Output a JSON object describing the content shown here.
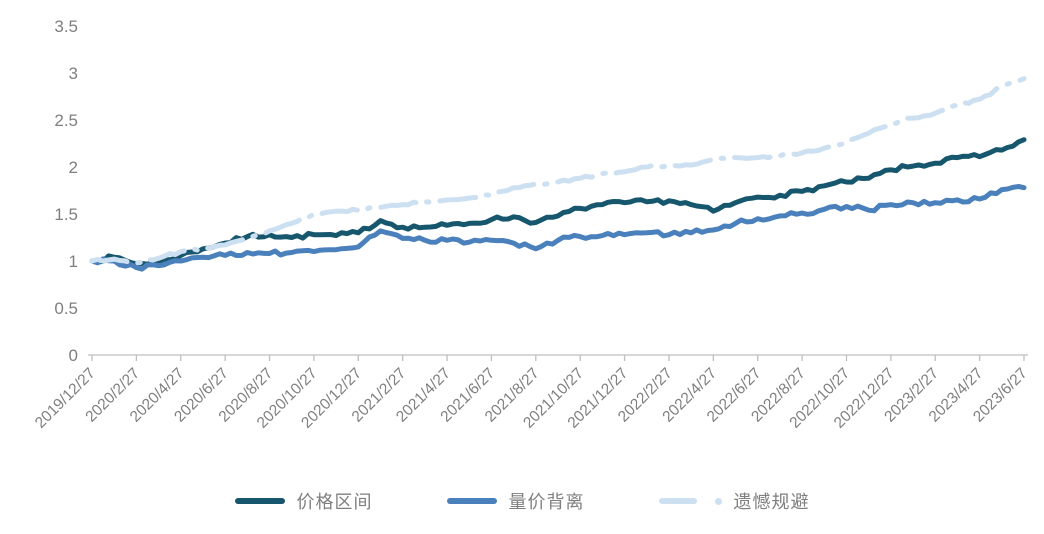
{
  "chart_data": {
    "type": "line",
    "title": "",
    "xlabel": "",
    "ylabel": "",
    "ylim": [
      0,
      3.5
    ],
    "y_ticks": [
      "0",
      "0.5",
      "1",
      "1.5",
      "2",
      "2.5",
      "3",
      "3.5"
    ],
    "grid": false,
    "legend_position": "bottom",
    "axis_color": "#bfbfbf",
    "tick_label_color": "#7f7f7f",
    "categories": [
      "2019/12/27",
      "2020/2/27",
      "2020/4/27",
      "2020/6/27",
      "2020/8/27",
      "2020/10/27",
      "2020/12/27",
      "2021/2/27",
      "2021/4/27",
      "2021/6/27",
      "2021/8/27",
      "2021/10/27",
      "2021/12/27",
      "2022/2/27",
      "2022/4/27",
      "2022/6/27",
      "2022/8/27",
      "2022/10/27",
      "2022/12/27",
      "2023/2/27",
      "2023/4/27",
      "2023/6/27"
    ],
    "samples_per_category_interval": 2,
    "series": [
      {
        "id": "price-range",
        "name": "价格区间",
        "color": "#17576e",
        "style": "solid",
        "values": [
          1.0,
          1.04,
          0.97,
          0.99,
          1.06,
          1.13,
          1.19,
          1.26,
          1.28,
          1.25,
          1.28,
          1.27,
          1.3,
          1.43,
          1.36,
          1.36,
          1.38,
          1.4,
          1.44,
          1.47,
          1.41,
          1.48,
          1.56,
          1.6,
          1.62,
          1.63,
          1.64,
          1.6,
          1.53,
          1.62,
          1.68,
          1.7,
          1.74,
          1.8,
          1.84,
          1.88,
          1.97,
          2.01,
          2.04,
          2.1,
          2.11,
          2.18,
          2.29
        ]
      },
      {
        "id": "volume-price-divergence",
        "name": "量价背离",
        "color": "#4a81bc",
        "style": "solid",
        "values": [
          1.0,
          1.0,
          0.93,
          0.95,
          1.0,
          1.04,
          1.06,
          1.09,
          1.08,
          1.09,
          1.1,
          1.12,
          1.15,
          1.32,
          1.24,
          1.22,
          1.22,
          1.2,
          1.22,
          1.19,
          1.13,
          1.22,
          1.26,
          1.27,
          1.28,
          1.3,
          1.28,
          1.3,
          1.33,
          1.4,
          1.45,
          1.48,
          1.51,
          1.55,
          1.58,
          1.54,
          1.6,
          1.62,
          1.62,
          1.65,
          1.66,
          1.76,
          1.78
        ]
      },
      {
        "id": "regret-aversion",
        "name": "遗憾规避",
        "color": "#cde0f1",
        "style": "dash-dot",
        "values": [
          1.0,
          1.02,
          0.98,
          1.03,
          1.1,
          1.14,
          1.17,
          1.25,
          1.32,
          1.4,
          1.5,
          1.53,
          1.54,
          1.57,
          1.6,
          1.63,
          1.65,
          1.67,
          1.7,
          1.78,
          1.82,
          1.84,
          1.88,
          1.93,
          1.95,
          2.0,
          2.02,
          2.02,
          2.08,
          2.1,
          2.1,
          2.12,
          2.15,
          2.2,
          2.26,
          2.36,
          2.46,
          2.52,
          2.57,
          2.66,
          2.72,
          2.85,
          2.94
        ]
      }
    ]
  }
}
